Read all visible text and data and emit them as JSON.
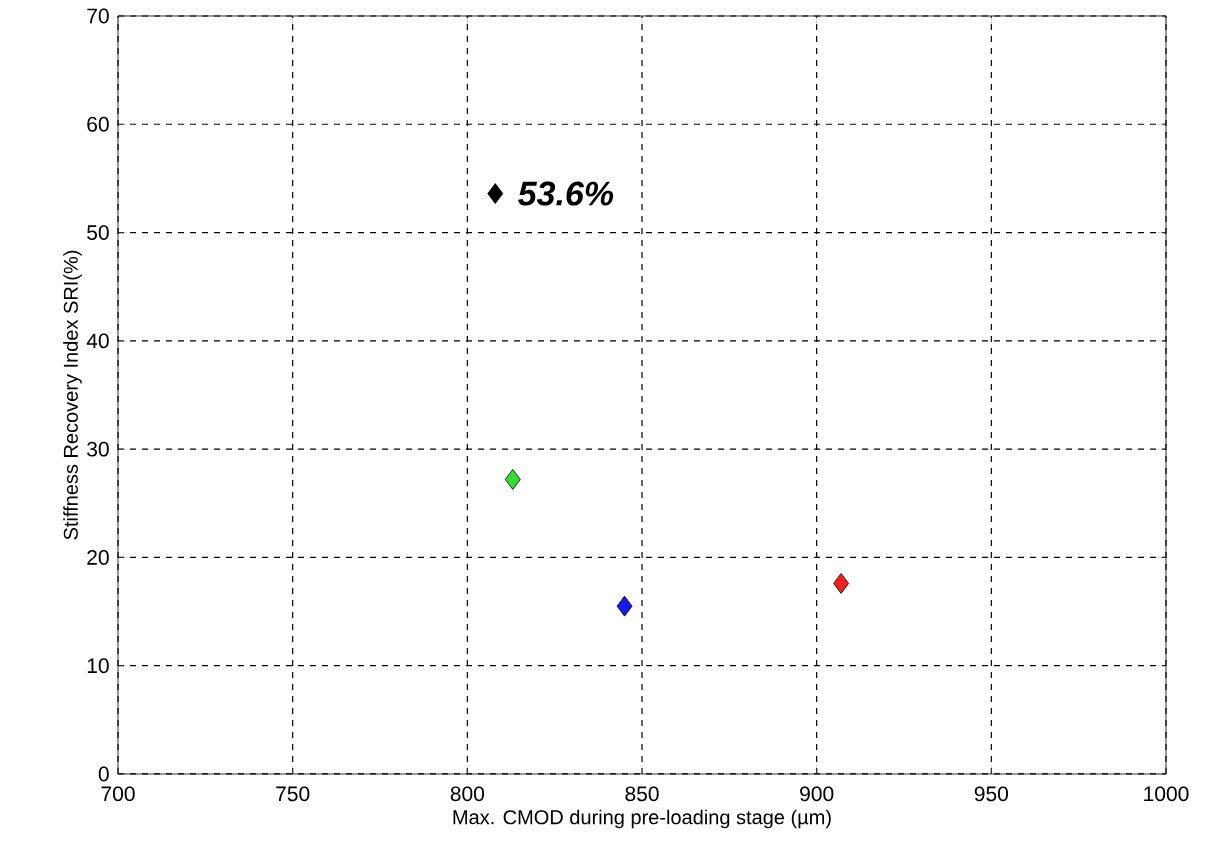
{
  "chart_data": {
    "type": "scatter",
    "xlabel": "Max. CMOD during pre-loading stage (µm)",
    "ylabel": "Stiffness Recovery Index SRI(%)",
    "x": [
      808,
      813,
      845,
      907
    ],
    "values": [
      53.6,
      27.2,
      15.5,
      17.6
    ],
    "colors": [
      "#000000",
      "#33dd33",
      "#1a1aee",
      "#ee2222"
    ],
    "marker": "diamond",
    "grid": true,
    "xlim": [
      700,
      1000
    ],
    "ylim": [
      0,
      70
    ],
    "xticks": [
      700,
      750,
      800,
      850,
      900,
      950,
      1000
    ],
    "yticks": [
      0,
      10,
      20,
      30,
      40,
      50,
      60,
      70
    ],
    "annotations": [
      {
        "text": "53.6%",
        "x": 808,
        "y": 53.6
      }
    ]
  }
}
